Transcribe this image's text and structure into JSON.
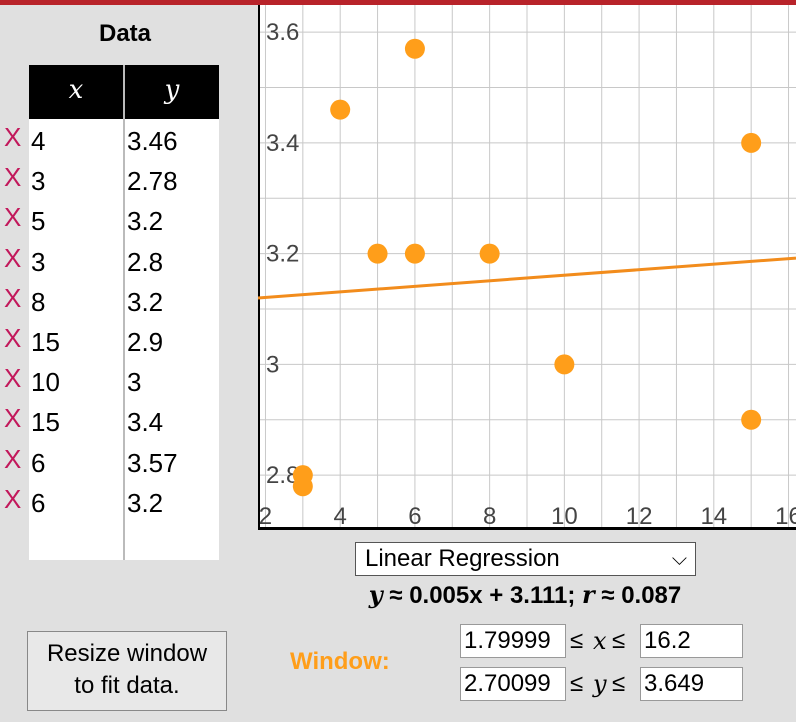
{
  "table": {
    "title": "Data",
    "col_x": "x",
    "col_y": "y",
    "delete_glyph": "X",
    "rows": [
      {
        "x": "4",
        "y": "3.46"
      },
      {
        "x": "3",
        "y": "2.78"
      },
      {
        "x": "5",
        "y": "3.2"
      },
      {
        "x": "3",
        "y": "2.8"
      },
      {
        "x": "8",
        "y": "3.2"
      },
      {
        "x": "15",
        "y": "2.9"
      },
      {
        "x": "10",
        "y": "3"
      },
      {
        "x": "15",
        "y": "3.4"
      },
      {
        "x": "6",
        "y": "3.57"
      },
      {
        "x": "6",
        "y": "3.2"
      }
    ]
  },
  "controls": {
    "regression": "Linear Regression",
    "equation": {
      "y": "y",
      "mid": " ≈ 0.005x + 3.111; ",
      "r": "r",
      "tail": " ≈ 0.087"
    },
    "resize_line1": "Resize window",
    "resize_line2": "to fit data.",
    "window_label": "Window:",
    "x_min": "1.79999",
    "x_max": "16.2",
    "y_min": "2.70099",
    "y_max": "3.649",
    "leq": "≤",
    "x_sym": "x",
    "y_sym": "y"
  },
  "chart_data": {
    "type": "scatter",
    "points": [
      {
        "x": 4,
        "y": 3.46
      },
      {
        "x": 3,
        "y": 2.78
      },
      {
        "x": 5,
        "y": 3.2
      },
      {
        "x": 3,
        "y": 2.8
      },
      {
        "x": 8,
        "y": 3.2
      },
      {
        "x": 15,
        "y": 2.9
      },
      {
        "x": 10,
        "y": 3
      },
      {
        "x": 15,
        "y": 3.4
      },
      {
        "x": 6,
        "y": 3.57
      },
      {
        "x": 6,
        "y": 3.2
      }
    ],
    "regression": {
      "slope": 0.005,
      "intercept": 3.111
    },
    "xlim": [
      1.79999,
      16.2
    ],
    "ylim": [
      2.70099,
      3.649
    ],
    "x_ticks": [
      2,
      4,
      6,
      8,
      10,
      12,
      14,
      16
    ],
    "x_tick_labels": [
      "2",
      "4",
      "6",
      "8",
      "10",
      "12",
      "14",
      "16"
    ],
    "y_ticks": [
      2.8,
      3,
      3.2,
      3.4,
      3.6
    ],
    "y_tick_labels": [
      "2.8",
      "3",
      "3.2",
      "3.4",
      "3.6"
    ],
    "x_minor_step": 1,
    "y_minor_step": 0.1,
    "grid": true,
    "point_color": "#ff9e1a",
    "line_color": "#f28c1c"
  }
}
